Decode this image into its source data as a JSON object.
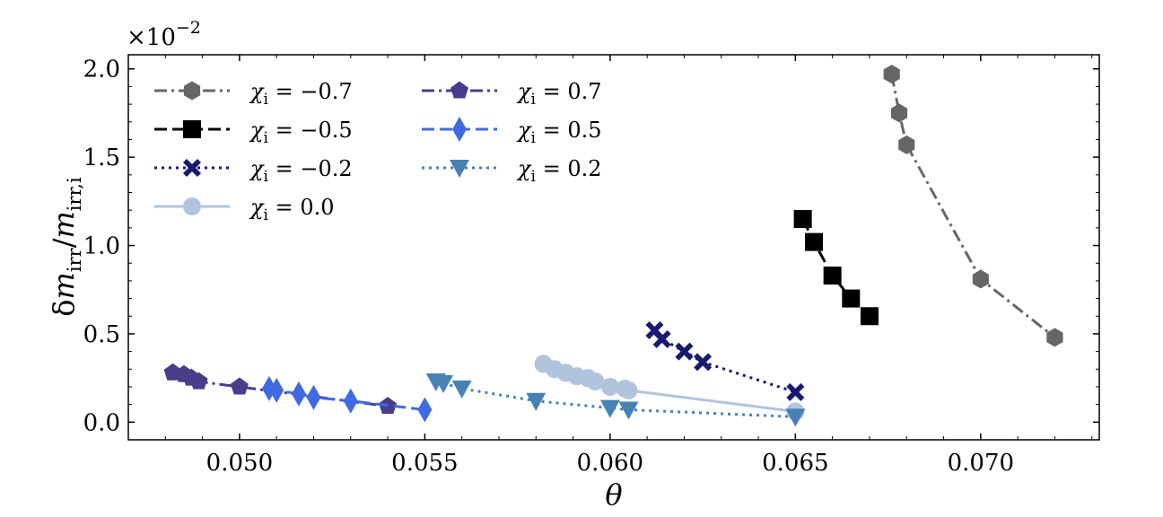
{
  "chart_data": {
    "type": "line",
    "title": "",
    "xlabel": "θ",
    "ylabel": "δm_irr/m_irr,i",
    "ylabel_parts": {
      "delta": "δ",
      "m1": "m",
      "sub1": "irr",
      "slash": "/",
      "m2": "m",
      "sub2": "irr,i"
    },
    "y_multiplier": {
      "base": "×10",
      "exponent": "−2"
    },
    "xlim": [
      0.047,
      0.0732
    ],
    "ylim": [
      -0.1,
      2.08
    ],
    "xticks": [
      0.05,
      0.055,
      0.06,
      0.065,
      0.07
    ],
    "xtick_labels": [
      "0.050",
      "0.055",
      "0.060",
      "0.065",
      "0.070"
    ],
    "yticks": [
      0.0,
      0.5,
      1.0,
      1.5,
      2.0
    ],
    "ytick_labels": [
      "0.0",
      "0.5",
      "1.0",
      "1.5",
      "2.0"
    ],
    "grid": false,
    "legend_position": "top-left",
    "series": [
      {
        "name": "χi = −0.7",
        "legend_symbol": "χ",
        "legend_sub": "i",
        "legend_value": " = −0.7",
        "color": "#666666",
        "marker": "hexagon",
        "linestyle": "dashdot",
        "x": [
          0.0676,
          0.0678,
          0.068,
          0.07,
          0.072
        ],
        "y": [
          1.97,
          1.75,
          1.57,
          0.81,
          0.48
        ]
      },
      {
        "name": "χi = −0.5",
        "legend_symbol": "χ",
        "legend_sub": "i",
        "legend_value": " = −0.5",
        "color": "#000000",
        "marker": "square",
        "linestyle": "dashed",
        "x": [
          0.0652,
          0.0655,
          0.066,
          0.0665,
          0.067
        ],
        "y": [
          1.15,
          1.02,
          0.83,
          0.7,
          0.6
        ]
      },
      {
        "name": "χi = −0.2",
        "legend_symbol": "χ",
        "legend_sub": "i",
        "legend_value": " = −0.2",
        "color": "#191970",
        "marker": "x",
        "linestyle": "dotted",
        "x": [
          0.0612,
          0.0614,
          0.062,
          0.0625,
          0.065
        ],
        "y": [
          0.52,
          0.47,
          0.4,
          0.34,
          0.17
        ]
      },
      {
        "name": "χi = 0.0",
        "legend_symbol": "χ",
        "legend_sub": "i",
        "legend_value": " = 0.0",
        "color": "#b0c4de",
        "marker": "circle",
        "linestyle": "solid",
        "x": [
          0.0582,
          0.0585,
          0.0588,
          0.0591,
          0.0594,
          0.0596,
          0.06,
          0.0604,
          0.0605,
          0.065
        ],
        "y": [
          0.33,
          0.3,
          0.28,
          0.26,
          0.25,
          0.23,
          0.2,
          0.19,
          0.18,
          0.06
        ]
      },
      {
        "name": "χi = 0.7",
        "legend_symbol": "χ",
        "legend_sub": "i",
        "legend_value": " = 0.7",
        "color": "#483d8b",
        "marker": "pentagon",
        "linestyle": "dashdot",
        "x": [
          0.0482,
          0.0485,
          0.0487,
          0.0489,
          0.05,
          0.054
        ],
        "y": [
          0.28,
          0.27,
          0.25,
          0.23,
          0.2,
          0.09
        ]
      },
      {
        "name": "χi = 0.5",
        "legend_symbol": "χ",
        "legend_sub": "i",
        "legend_value": " = 0.5",
        "color": "#4169e1",
        "marker": "diamond",
        "linestyle": "dashed",
        "x": [
          0.0508,
          0.051,
          0.0516,
          0.052,
          0.053,
          0.055
        ],
        "y": [
          0.19,
          0.18,
          0.16,
          0.14,
          0.12,
          0.07
        ]
      },
      {
        "name": "χi = 0.2",
        "legend_symbol": "χ",
        "legend_sub": "i",
        "legend_value": " = 0.2",
        "color": "#4682b4",
        "marker": "triangle-down",
        "linestyle": "dotted",
        "x": [
          0.0553,
          0.0555,
          0.056,
          0.058,
          0.06,
          0.0605,
          0.065
        ],
        "y": [
          0.23,
          0.22,
          0.19,
          0.12,
          0.08,
          0.07,
          0.03
        ]
      }
    ]
  }
}
